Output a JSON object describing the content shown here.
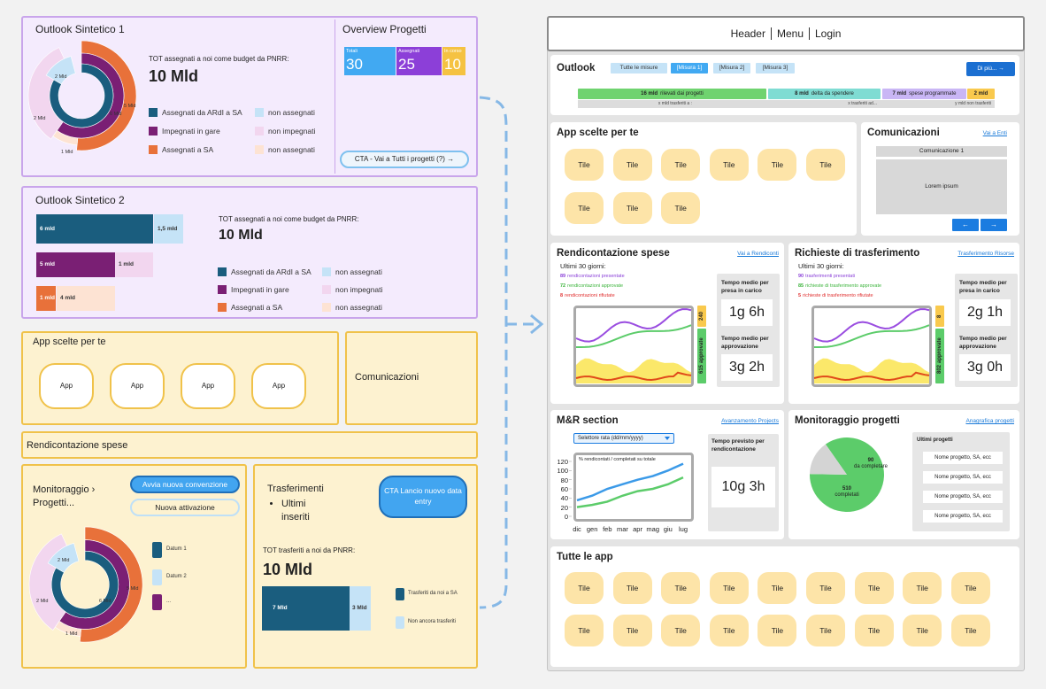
{
  "left": {
    "outlook1": {
      "title": "Outlook Sintetico 1",
      "donut_labels": [
        "2 Mld",
        "2 Mld",
        "1 Mld",
        "6 Mld",
        "5 Mld"
      ],
      "total_label": "TOT assegnati a noi come budget da PNRR:",
      "total": "10 Mld",
      "legend": [
        "Assegnati da ARdI a SA",
        "non assegnati",
        "Impegnati in gare",
        "non impegnati",
        "Assegnati a SA",
        "non assegnati"
      ]
    },
    "overview": {
      "title": "Overview Progetti",
      "tiles": [
        {
          "label": "Totali",
          "value": 30
        },
        {
          "label": "Assegnati",
          "value": 25
        },
        {
          "label": "In corso",
          "value": 10
        }
      ],
      "cta": "CTA - Vai a Tutti i progetti (?) →"
    },
    "outlook2": {
      "title": "Outlook Sintetico 2",
      "bars": [
        [
          "6 mld",
          "1,5 mld"
        ],
        [
          "5 mld",
          "1 mld"
        ],
        [
          "1 mld",
          "4 mld"
        ]
      ],
      "total_label": "TOT assegnati a noi come budget da PNRR:",
      "total": "10 Mld",
      "legend": [
        "Assegnati da ARdI a SA",
        "non assegnati",
        "Impegnati in gare",
        "non impegnati",
        "Assegnati a SA",
        "non assegnati"
      ]
    },
    "apps": {
      "title": "App scelte per te",
      "tiles": [
        "App",
        "App",
        "App",
        "App"
      ]
    },
    "comunicazioni": {
      "title": "Comunicazioni"
    },
    "rendicontazione": {
      "title": "Rendicontazione spese"
    },
    "monitoraggio": {
      "title": "Monitoraggio › Progetti...",
      "buttons": [
        "Avvia nuova convenzione",
        "Nuova attivazione"
      ],
      "donut_labels": [
        "2 Mld",
        "2 Mld",
        "1 Mld",
        "6 Mld",
        "5 Mld"
      ],
      "legend": [
        "Datum 1",
        "Datum 2",
        "..."
      ]
    },
    "trasferimenti": {
      "title": "Trasferimenti",
      "bullet": "Ultimi inseriti",
      "cta": "CTA Lancio nuovo data entry",
      "total_label": "TOT trasferiti a noi da PNRR:",
      "total": "10 Mld",
      "bars": [
        "7 Mld",
        "3 Mld"
      ],
      "legend": [
        "Trasferiti da noi a SA",
        "Non ancora trasferiti"
      ]
    }
  },
  "right": {
    "header": {
      "items": [
        "Header",
        "Menu",
        "Login"
      ]
    },
    "outlook": {
      "title": "Outlook",
      "filters": [
        "Tutte le misure",
        "[Misura 1]",
        "[Misura 2]",
        "[Misura 3]"
      ],
      "more": "Di più... →",
      "progress": [
        {
          "amount": "16 mld",
          "text": "rilevati dai progetti"
        },
        {
          "amount": "8 mld",
          "text": "delta da spendere"
        },
        {
          "amount": "7 mld",
          "text": "spese programmate"
        },
        {
          "amount": "2 mld"
        }
      ],
      "transfers": [
        "x mld trasferiti a :",
        "x trasferiti ad...",
        "y mld non trasferiti"
      ]
    },
    "apps": {
      "title": "App scelte per te",
      "tiles": [
        "Tile",
        "Tile",
        "Tile",
        "Tile",
        "Tile",
        "Tile",
        "Tile",
        "Tile",
        "Tile"
      ]
    },
    "comunicazioni": {
      "title": "Comunicazioni",
      "link": "Vai a Enti",
      "item": "Comunicazione 1",
      "body": "Lorem ipsum",
      "nav": [
        "←",
        "→"
      ]
    },
    "rendicontazione": {
      "title": "Rendicontazione spese",
      "link": "Vai a Rendiconti",
      "period": "Ultimi 30 giorni:",
      "stats": [
        {
          "n": 89,
          "text": "rendicontazioni presentate"
        },
        {
          "n": 72,
          "text": "rendicontazioni approvate"
        },
        {
          "n": 8,
          "text": "rendicontazioni rifiutate"
        }
      ],
      "bars": [
        {
          "n": 240
        },
        {
          "n": 615,
          "text": "approvate"
        }
      ],
      "kpis": [
        {
          "label": "Tempo medio per presa in carico",
          "value": "1g 6h"
        },
        {
          "label": "Tempo medio per approvazione",
          "value": "3g 2h"
        }
      ]
    },
    "richieste": {
      "title": "Richieste di trasferimento",
      "link": "Trasferimento Risorse",
      "period": "Ultimi 30 giorni:",
      "stats": [
        {
          "n": 90,
          "text": "trasferimenti presentati"
        },
        {
          "n": 85,
          "text": "richieste di trasferimento approvate"
        },
        {
          "n": 5,
          "text": "richieste di trasferimento rifiutate"
        }
      ],
      "bars": [
        {
          "n": 8
        },
        {
          "n": 802,
          "text": "approvate"
        }
      ],
      "kpis": [
        {
          "label": "Tempo medio per presa in carico",
          "value": "2g 1h"
        },
        {
          "label": "Tempo medio per approvazione",
          "value": "3g 0h"
        }
      ]
    },
    "mr": {
      "title": "M&R section",
      "link": "Avanzamento Projects",
      "selector": "Selettore rata (dd/mm/yyyy)",
      "chart": {
        "type": "line",
        "subtitle": "% rendicontati / completati su totale",
        "categories": [
          "dic",
          "gen",
          "feb",
          "mar",
          "apr",
          "mag",
          "giu",
          "lug"
        ],
        "ylim": [
          0,
          120
        ],
        "yticks": [
          0,
          20,
          40,
          60,
          80,
          100,
          120
        ],
        "series": [
          {
            "color": "#3b9ae8",
            "values": [
              35,
              45,
              60,
              70,
              80,
              88,
              100,
              115
            ]
          },
          {
            "color": "#5ccc6a",
            "values": [
              20,
              25,
              32,
              45,
              55,
              60,
              70,
              85
            ]
          }
        ]
      },
      "kpi": {
        "label": "Tempo previsto per rendicontazione",
        "value": "10g 3h"
      }
    },
    "monitoraggio": {
      "title": "Monitoraggio progetti",
      "link": "Anagrafica progetti",
      "pie": {
        "type": "pie",
        "segments": [
          {
            "value": 510,
            "label": "completati",
            "color": "#5ccc6a"
          },
          {
            "value": 90,
            "label": "da completare",
            "color": "#d4d4d4"
          }
        ]
      },
      "list_title": "Ultimi progetti",
      "items": [
        "Nome progetto, SA, ecc",
        "Nome progetto, SA, ecc",
        "Nome progetto, SA, ecc",
        "Nome progetto, SA, ecc"
      ]
    },
    "all_apps": {
      "title": "Tutte le app",
      "tiles": [
        "Tile",
        "Tile",
        "Tile",
        "Tile",
        "Tile",
        "Tile",
        "Tile",
        "Tile",
        "Tile",
        "Tile",
        "Tile",
        "Tile",
        "Tile",
        "Tile",
        "Tile",
        "Tile",
        "Tile",
        "Tile"
      ]
    }
  }
}
